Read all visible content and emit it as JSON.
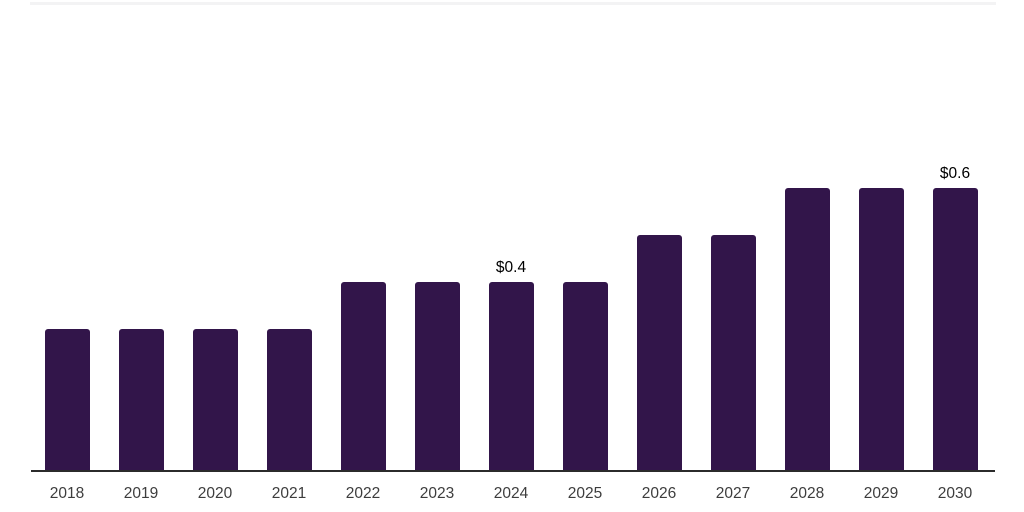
{
  "page": {
    "background": "#ffffff",
    "top_divider_color": "#f3f3f4"
  },
  "chart_data": {
    "type": "bar",
    "title": "",
    "xlabel": "",
    "ylabel": "",
    "categories": [
      "2018",
      "2019",
      "2020",
      "2021",
      "2022",
      "2023",
      "2024",
      "2025",
      "2026",
      "2027",
      "2028",
      "2029",
      "2030"
    ],
    "values": [
      0.3,
      0.3,
      0.3,
      0.3,
      0.4,
      0.4,
      0.4,
      0.4,
      0.5,
      0.5,
      0.6,
      0.6,
      0.6
    ],
    "point_labels": {
      "2024": "$0.4",
      "2030": "$0.6"
    },
    "value_prefix": "$",
    "ylim": [
      0,
      0.65
    ],
    "grid": false,
    "legend": false,
    "bar_color": "#32154A",
    "axis_line_color": "#2B2B2B",
    "tick_label_color": "#3D3D3D",
    "data_label_color": "#000000"
  }
}
